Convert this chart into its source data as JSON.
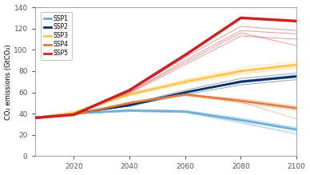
{
  "title": "",
  "ylabel": "CO₂ emissions (GtCO₂)",
  "xlabel": "",
  "xlim": [
    2006,
    2100
  ],
  "ylim": [
    0,
    140
  ],
  "yticks": [
    0,
    20,
    40,
    60,
    80,
    100,
    120,
    140
  ],
  "xticks": [
    2020,
    2040,
    2060,
    2080,
    2100
  ],
  "ssp_colors": {
    "SSP1": "#6BAED6",
    "SSP2": "#08306B",
    "SSP3": "#FEC44F",
    "SSP4": "#E07B39",
    "SSP5": "#CC2222"
  },
  "background": "#ffffff",
  "legend_color": "#cccccc",
  "scenarios": {
    "SSP1": {
      "thick": [
        2006,
        36,
        2020,
        40,
        2040,
        43,
        2060,
        42,
        2080,
        34,
        2100,
        25
      ],
      "thin_variants": [
        [
          2006,
          36,
          2020,
          40,
          2040,
          42,
          2060,
          41,
          2080,
          31,
          2100,
          22
        ],
        [
          2006,
          36,
          2020,
          40,
          2040,
          43,
          2060,
          42,
          2080,
          32,
          2100,
          20
        ],
        [
          2006,
          36,
          2020,
          40,
          2040,
          44,
          2060,
          43,
          2080,
          36,
          2100,
          27
        ],
        [
          2006,
          36,
          2020,
          40,
          2040,
          42,
          2060,
          41,
          2080,
          33,
          2100,
          24
        ],
        [
          2006,
          36,
          2020,
          40,
          2040,
          43,
          2060,
          42,
          2080,
          35,
          2100,
          26
        ]
      ]
    },
    "SSP2": {
      "thick": [
        2006,
        36,
        2020,
        40,
        2040,
        48,
        2060,
        60,
        2080,
        70,
        2100,
        75
      ],
      "thin_variants": [
        [
          2006,
          36,
          2020,
          40,
          2040,
          47,
          2060,
          58,
          2080,
          67,
          2100,
          72
        ],
        [
          2006,
          36,
          2020,
          40,
          2040,
          49,
          2060,
          62,
          2080,
          73,
          2100,
          78
        ],
        [
          2006,
          36,
          2020,
          40,
          2040,
          48,
          2060,
          60,
          2080,
          69,
          2100,
          74
        ],
        [
          2006,
          36,
          2020,
          40,
          2040,
          47,
          2060,
          59,
          2080,
          71,
          2100,
          76
        ]
      ]
    },
    "SSP3": {
      "thick": [
        2006,
        36,
        2020,
        41,
        2040,
        58,
        2060,
        70,
        2080,
        80,
        2100,
        86
      ],
      "thin_variants": [
        [
          2006,
          36,
          2020,
          41,
          2040,
          57,
          2060,
          68,
          2080,
          77,
          2100,
          83
        ],
        [
          2006,
          36,
          2020,
          41,
          2040,
          59,
          2060,
          72,
          2080,
          83,
          2100,
          89
        ],
        [
          2006,
          36,
          2020,
          41,
          2040,
          58,
          2060,
          69,
          2080,
          79,
          2100,
          85
        ],
        [
          2006,
          36,
          2020,
          41,
          2040,
          57,
          2060,
          71,
          2080,
          81,
          2100,
          87
        ],
        [
          2006,
          36,
          2020,
          41,
          2040,
          59,
          2060,
          70,
          2080,
          78,
          2100,
          84
        ]
      ]
    },
    "SSP4": {
      "thick": [
        2006,
        36,
        2020,
        39,
        2040,
        50,
        2060,
        58,
        2080,
        52,
        2100,
        45
      ],
      "thin_variants": [
        [
          2006,
          36,
          2020,
          39,
          2040,
          50,
          2060,
          57,
          2080,
          50,
          2100,
          43
        ],
        [
          2006,
          36,
          2020,
          39,
          2040,
          51,
          2060,
          59,
          2080,
          53,
          2100,
          46
        ],
        [
          2006,
          36,
          2020,
          39,
          2040,
          50,
          2060,
          58,
          2080,
          51,
          2100,
          35
        ],
        [
          2006,
          36,
          2020,
          39,
          2040,
          49,
          2060,
          57,
          2080,
          54,
          2100,
          47
        ]
      ]
    },
    "SSP5": {
      "thick": [
        2006,
        36,
        2020,
        39,
        2040,
        62,
        2060,
        95,
        2080,
        130,
        2100,
        127
      ],
      "thin_variants": [
        [
          2006,
          36,
          2020,
          39,
          2040,
          60,
          2060,
          90,
          2080,
          118,
          2100,
          115
        ],
        [
          2006,
          36,
          2020,
          39,
          2040,
          61,
          2060,
          93,
          2080,
          122,
          2100,
          118
        ],
        [
          2006,
          36,
          2020,
          39,
          2040,
          60,
          2060,
          88,
          2080,
          116,
          2100,
          104
        ],
        [
          2006,
          36,
          2020,
          39,
          2040,
          59,
          2060,
          86,
          2080,
          113,
          2100,
          110
        ]
      ]
    }
  }
}
